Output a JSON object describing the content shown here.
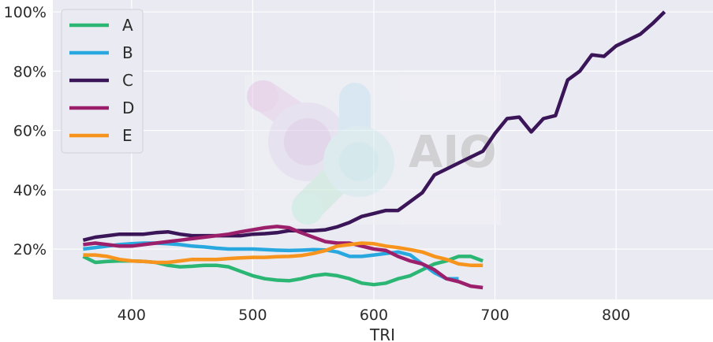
{
  "chart_data": {
    "type": "line",
    "xlabel": "TRI",
    "ylabel": "",
    "xlim": [
      335,
      880
    ],
    "ylim": [
      0.03,
      1.04
    ],
    "xticks": [
      400,
      500,
      600,
      700,
      800
    ],
    "yticks": [
      0.2,
      0.4,
      0.6,
      0.8,
      1.0
    ],
    "ytick_labels": [
      "20%",
      "40%",
      "60%",
      "80%",
      "100%"
    ],
    "grid": true,
    "legend_position": "top-left",
    "watermark": "AIO",
    "series": [
      {
        "name": "A",
        "color": "#2bb673",
        "x": [
          360,
          370,
          380,
          390,
          400,
          410,
          420,
          430,
          440,
          450,
          460,
          470,
          480,
          490,
          500,
          510,
          520,
          530,
          540,
          550,
          560,
          570,
          580,
          590,
          600,
          610,
          620,
          630,
          640,
          650,
          660,
          670,
          680,
          690
        ],
        "y": [
          0.175,
          0.155,
          0.158,
          0.16,
          0.16,
          0.158,
          0.155,
          0.145,
          0.14,
          0.142,
          0.145,
          0.145,
          0.14,
          0.125,
          0.11,
          0.1,
          0.095,
          0.093,
          0.1,
          0.11,
          0.115,
          0.11,
          0.1,
          0.085,
          0.08,
          0.085,
          0.1,
          0.11,
          0.13,
          0.15,
          0.16,
          0.175,
          0.175,
          0.16
        ]
      },
      {
        "name": "B",
        "color": "#29a8e0",
        "x": [
          360,
          370,
          380,
          390,
          400,
          410,
          420,
          430,
          440,
          450,
          460,
          470,
          480,
          490,
          500,
          510,
          520,
          530,
          540,
          550,
          560,
          570,
          580,
          590,
          600,
          610,
          620,
          630,
          640,
          650,
          660,
          670
        ],
        "y": [
          0.2,
          0.205,
          0.21,
          0.215,
          0.218,
          0.22,
          0.22,
          0.218,
          0.215,
          0.21,
          0.207,
          0.203,
          0.2,
          0.2,
          0.2,
          0.198,
          0.196,
          0.195,
          0.196,
          0.198,
          0.197,
          0.19,
          0.175,
          0.175,
          0.18,
          0.185,
          0.19,
          0.18,
          0.15,
          0.12,
          0.1,
          0.1
        ]
      },
      {
        "name": "C",
        "color": "#3a1557",
        "x": [
          360,
          370,
          380,
          390,
          400,
          410,
          420,
          430,
          440,
          450,
          460,
          470,
          480,
          490,
          500,
          510,
          520,
          530,
          540,
          550,
          560,
          570,
          580,
          590,
          600,
          610,
          620,
          630,
          640,
          650,
          660,
          670,
          680,
          690,
          700,
          710,
          720,
          730,
          740,
          750,
          760,
          770,
          780,
          790,
          800,
          810,
          820,
          830,
          840
        ],
        "y": [
          0.23,
          0.24,
          0.245,
          0.25,
          0.25,
          0.25,
          0.255,
          0.258,
          0.25,
          0.245,
          0.245,
          0.245,
          0.245,
          0.245,
          0.25,
          0.252,
          0.255,
          0.262,
          0.262,
          0.262,
          0.265,
          0.275,
          0.29,
          0.31,
          0.32,
          0.33,
          0.33,
          0.36,
          0.39,
          0.45,
          0.47,
          0.49,
          0.51,
          0.53,
          0.59,
          0.64,
          0.645,
          0.595,
          0.64,
          0.65,
          0.77,
          0.8,
          0.855,
          0.85,
          0.885,
          0.905,
          0.925,
          0.96,
          1.0
        ]
      },
      {
        "name": "D",
        "color": "#9b1f6a",
        "x": [
          360,
          370,
          380,
          390,
          400,
          410,
          420,
          430,
          440,
          450,
          460,
          470,
          480,
          490,
          500,
          510,
          520,
          530,
          540,
          550,
          560,
          570,
          580,
          590,
          600,
          610,
          620,
          630,
          640,
          650,
          660,
          670,
          680,
          690
        ],
        "y": [
          0.215,
          0.22,
          0.215,
          0.21,
          0.21,
          0.215,
          0.22,
          0.225,
          0.23,
          0.235,
          0.24,
          0.245,
          0.25,
          0.258,
          0.265,
          0.272,
          0.276,
          0.272,
          0.255,
          0.24,
          0.225,
          0.22,
          0.22,
          0.21,
          0.2,
          0.195,
          0.175,
          0.16,
          0.15,
          0.13,
          0.1,
          0.09,
          0.075,
          0.07
        ]
      },
      {
        "name": "E",
        "color": "#f7941d",
        "x": [
          360,
          370,
          380,
          390,
          400,
          410,
          420,
          430,
          440,
          450,
          460,
          470,
          480,
          490,
          500,
          510,
          520,
          530,
          540,
          550,
          560,
          570,
          580,
          590,
          600,
          610,
          620,
          630,
          640,
          650,
          660,
          670,
          680,
          690
        ],
        "y": [
          0.18,
          0.18,
          0.175,
          0.165,
          0.16,
          0.158,
          0.155,
          0.155,
          0.16,
          0.165,
          0.165,
          0.165,
          0.168,
          0.17,
          0.172,
          0.172,
          0.174,
          0.175,
          0.178,
          0.185,
          0.195,
          0.21,
          0.215,
          0.22,
          0.218,
          0.21,
          0.205,
          0.198,
          0.19,
          0.175,
          0.165,
          0.15,
          0.145,
          0.145
        ]
      }
    ]
  }
}
